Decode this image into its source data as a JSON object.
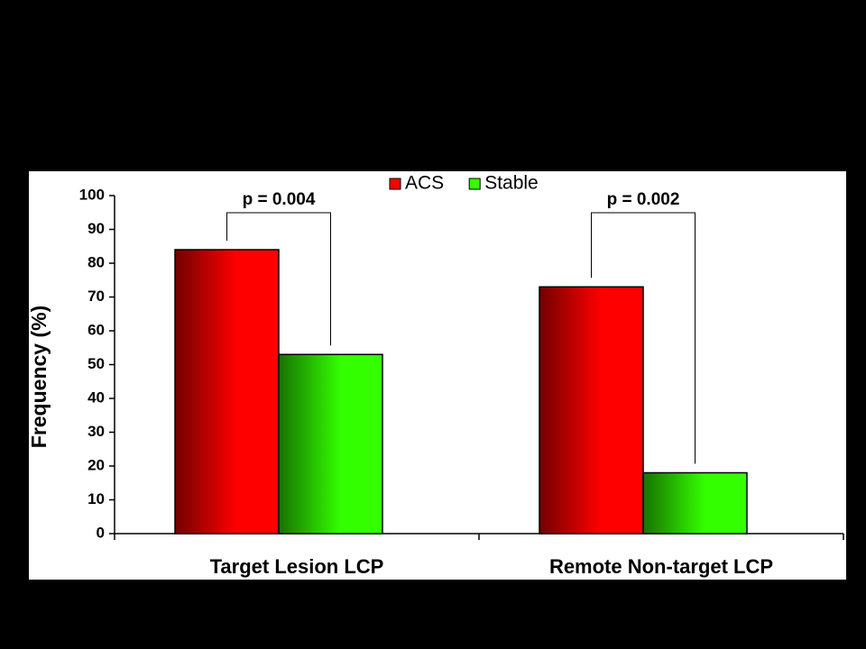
{
  "chart_data": {
    "type": "bar",
    "y_label": "Frequency (%)",
    "categories": [
      "Target Lesion LCP",
      "Remote Non-target LCP"
    ],
    "series": [
      {
        "name": "ACS",
        "color": "#ff0000",
        "values": [
          84,
          73
        ]
      },
      {
        "name": "Stable",
        "color": "#33ff00",
        "values": [
          53,
          18
        ]
      }
    ],
    "annotations": [
      "p = 0.004",
      "p = 0.002"
    ],
    "ylim": [
      0,
      100
    ],
    "yticks": [
      0,
      10,
      20,
      30,
      40,
      50,
      60,
      70,
      80,
      90,
      100
    ],
    "legend": "top"
  }
}
